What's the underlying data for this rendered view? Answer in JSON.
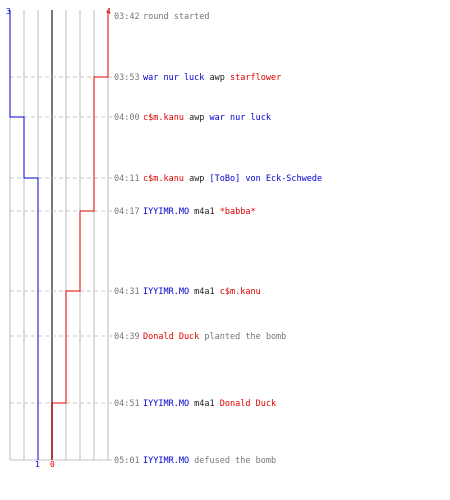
{
  "colors": {
    "team_a": "#0000cc",
    "team_b": "#dd0000",
    "text_gray": "#777777",
    "grid": "#bbbbbb",
    "center_line": "#777777",
    "dash": "#c8c8c8"
  },
  "team_a": {
    "start_count": "3",
    "end_count": "1"
  },
  "team_b": {
    "start_count": "4",
    "end_count": "0"
  },
  "events": [
    {
      "time": "03:42",
      "segments": [
        {
          "text": "round started",
          "role": "gray"
        }
      ]
    },
    {
      "time": "03:53",
      "segments": [
        {
          "text": "war nur luck",
          "role": "a"
        },
        {
          "text": " awp ",
          "role": "plain"
        },
        {
          "text": "starflower",
          "role": "b"
        }
      ]
    },
    {
      "time": "04:00",
      "segments": [
        {
          "text": "c$m.kanu",
          "role": "b"
        },
        {
          "text": " awp ",
          "role": "plain"
        },
        {
          "text": "war nur luck",
          "role": "a"
        }
      ]
    },
    {
      "time": "04:11",
      "segments": [
        {
          "text": "c$m.kanu",
          "role": "b"
        },
        {
          "text": " awp ",
          "role": "plain"
        },
        {
          "text": "[ToBo] von Eck-Schwede",
          "role": "a"
        }
      ]
    },
    {
      "time": "04:17",
      "segments": [
        {
          "text": "IYYIMR.MO",
          "role": "a"
        },
        {
          "text": " m4a1 ",
          "role": "plain"
        },
        {
          "text": "*babba*",
          "role": "b"
        }
      ]
    },
    {
      "time": "04:31",
      "segments": [
        {
          "text": "IYYIMR.MO",
          "role": "a"
        },
        {
          "text": " m4a1 ",
          "role": "plain"
        },
        {
          "text": "c$m.kanu",
          "role": "b"
        }
      ]
    },
    {
      "time": "04:39",
      "segments": [
        {
          "text": "Donald Duck",
          "role": "b"
        },
        {
          "text": " planted the bomb",
          "role": "gray"
        }
      ]
    },
    {
      "time": "04:51",
      "segments": [
        {
          "text": "IYYIMR.MO",
          "role": "a"
        },
        {
          "text": " m4a1 ",
          "role": "plain"
        },
        {
          "text": "Donald Duck",
          "role": "b"
        }
      ]
    },
    {
      "time": "05:01",
      "segments": [
        {
          "text": "IYYIMR.MO",
          "role": "a"
        },
        {
          "text": " defused the bomb",
          "role": "gray"
        }
      ]
    }
  ]
}
